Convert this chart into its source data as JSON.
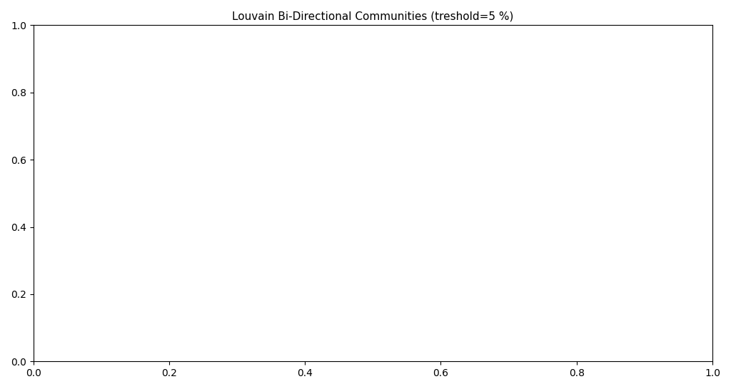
{
  "title": "Louvain Bi-Directional Communities (treshold=5 %)",
  "title_fontsize": 11,
  "background_color": "#ffffff",
  "ocean_color": "#ffffff",
  "border_color": "#4da6ff",
  "border_linewidth": 0.5,
  "community_colors": {
    "red": "#ff0000",
    "dark_brown": "#7b2020",
    "purple": "#6600cc",
    "orange": "#ff9900",
    "blue": "#0000ff",
    "dark_green": "#006600",
    "pink": "#ffb6c1",
    "white": "#ffffff",
    "bright_red": "#ff0000",
    "teal": "#008080"
  },
  "country_communities": {
    "USA": "dark_brown",
    "Canada": "red",
    "Mexico": "dark_brown",
    "Guatemala": "dark_brown",
    "Belize": "dark_brown",
    "Honduras": "dark_brown",
    "El Salvador": "dark_brown",
    "Nicaragua": "dark_brown",
    "Costa Rica": "dark_brown",
    "Panama": "dark_brown",
    "Cuba": "dark_brown",
    "Jamaica": "dark_brown",
    "Haiti": "dark_brown",
    "Dominican Republic": "dark_brown",
    "Puerto Rico": "dark_brown",
    "Trinidad and Tobago": "dark_brown",
    "Bahamas": "dark_brown",
    "Barbados": "dark_brown",
    "Venezuela": "dark_brown",
    "Colombia": "dark_brown",
    "Ecuador": "dark_brown",
    "Peru": "dark_brown",
    "Bolivia": "dark_brown",
    "Chile": "dark_brown",
    "Argentina": "dark_brown",
    "Uruguay": "dark_brown",
    "Paraguay": "dark_brown",
    "Brazil": "blue",
    "Suriname": "dark_brown",
    "Guyana": "dark_brown",
    "French Guiana": "dark_brown",
    "Greenland": "purple",
    "Iceland": "blue",
    "Norway": "blue",
    "Sweden": "blue",
    "Finland": "blue",
    "Denmark": "blue",
    "United Kingdom": "blue",
    "Ireland": "blue",
    "Netherlands": "blue",
    "Belgium": "blue",
    "Luxembourg": "blue",
    "France": "blue",
    "Germany": "blue",
    "Austria": "blue",
    "Switzerland": "blue",
    "Portugal": "blue",
    "Spain": "blue",
    "Italy": "blue",
    "Greece": "blue",
    "Poland": "blue",
    "Czech Republic": "blue",
    "Slovakia": "blue",
    "Hungary": "blue",
    "Romania": "blue",
    "Bulgaria": "blue",
    "Serbia": "blue",
    "Croatia": "blue",
    "Bosnia and Herzegovina": "blue",
    "Slovenia": "blue",
    "Albania": "blue",
    "North Macedonia": "blue",
    "Montenegro": "blue",
    "Kosovo": "blue",
    "Moldova": "blue",
    "Ukraine": "blue",
    "Belarus": "blue",
    "Lithuania": "blue",
    "Latvia": "blue",
    "Estonia": "blue",
    "Russia": "orange",
    "Kazakhstan": "orange",
    "Uzbekistan": "orange",
    "Turkmenistan": "orange",
    "Kyrgyzstan": "orange",
    "Tajikistan": "orange",
    "Azerbaijan": "orange",
    "Armenia": "orange",
    "Georgia": "orange",
    "Turkey": "orange",
    "Mongolia": "orange",
    "China": "dark_green",
    "Japan": "pink",
    "South Korea": "pink",
    "North Korea": "dark_green",
    "Taiwan": "dark_green",
    "Vietnam": "dark_green",
    "Laos": "dark_green",
    "Cambodia": "dark_green",
    "Thailand": "dark_green",
    "Myanmar": "dark_green",
    "Malaysia": "dark_green",
    "Singapore": "dark_green",
    "Indonesia": "dark_green",
    "Philippines": "dark_green",
    "Brunei": "dark_green",
    "Timor-Leste": "dark_green",
    "Papua New Guinea": "dark_brown",
    "Australia": "dark_green",
    "New Zealand": "orange",
    "India": "dark_brown",
    "Pakistan": "dark_brown",
    "Bangladesh": "dark_brown",
    "Sri Lanka": "dark_brown",
    "Nepal": "dark_brown",
    "Bhutan": "dark_green",
    "Afghanistan": "dark_brown",
    "Iran": "dark_brown",
    "Iraq": "blue",
    "Syria": "blue",
    "Lebanon": "blue",
    "Jordan": "blue",
    "Israel": "blue",
    "Palestine": "blue",
    "Saudi Arabia": "blue",
    "Yemen": "blue",
    "Oman": "blue",
    "UAE": "blue",
    "Qatar": "orange",
    "Bahrain": "blue",
    "Kuwait": "blue",
    "Morocco": "blue",
    "Algeria": "blue",
    "Tunisia": "blue",
    "Libya": "blue",
    "Egypt": "blue",
    "Sudan": "blue",
    "South Sudan": "blue",
    "Ethiopia": "dark_brown",
    "Eritrea": "dark_brown",
    "Djibouti": "dark_brown",
    "Somalia": "dark_brown",
    "Kenya": "dark_brown",
    "Tanzania": "dark_brown",
    "Uganda": "dark_brown",
    "Rwanda": "dark_brown",
    "Burundi": "dark_brown",
    "Nigeria": "red",
    "Ghana": "dark_green",
    "Cameroon": "blue",
    "Chad": "blue",
    "Niger": "blue",
    "Mali": "blue",
    "Senegal": "blue",
    "Guinea": "blue",
    "Sierra Leone": "blue",
    "Liberia": "blue",
    "Ivory Coast": "blue",
    "Burkina Faso": "blue",
    "Togo": "blue",
    "Benin": "blue",
    "Guinea-Bissau": "blue",
    "Gambia": "blue",
    "Mauritania": "blue",
    "Western Sahara": "blue",
    "DR Congo": "blue",
    "Congo": "dark_brown",
    "Gabon": "dark_brown",
    "Equatorial Guinea": "dark_brown",
    "Central African Republic": "dark_brown",
    "Angola": "dark_brown",
    "Zambia": "dark_green",
    "Zimbabwe": "dark_green",
    "Mozambique": "dark_brown",
    "Malawi": "dark_green",
    "Madagascar": "red",
    "Namibia": "dark_brown",
    "Botswana": "dark_brown",
    "South Africa": "white",
    "Lesotho": "white",
    "Swaziland": "dark_brown",
    "Mauritius": "dark_brown",
    "Seychelles": "dark_brown",
    "Comoros": "dark_brown",
    "Cape Verde": "dark_brown",
    "Sao Tome and Principe": "dark_brown"
  }
}
